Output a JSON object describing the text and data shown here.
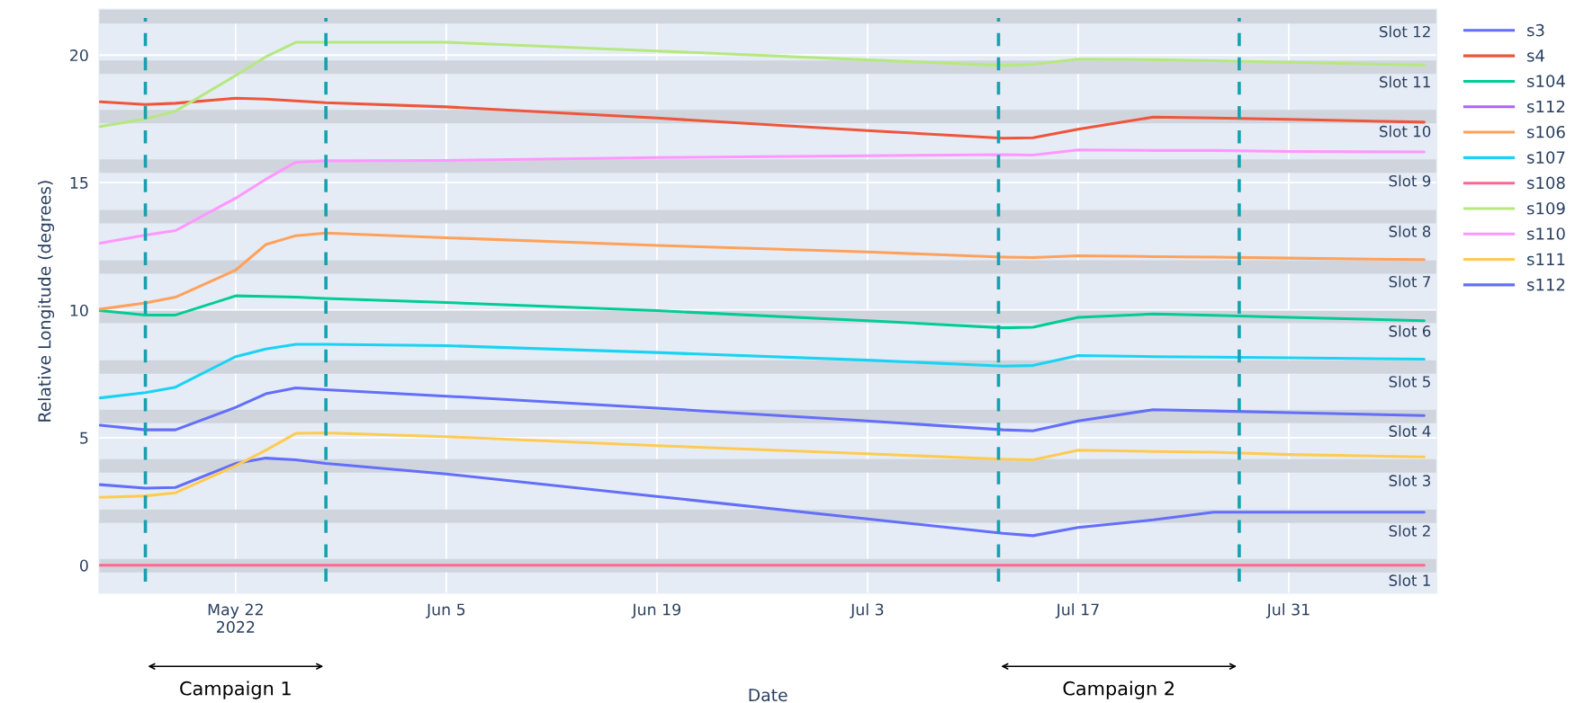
{
  "chart_data": {
    "type": "line",
    "xlabel": "Date",
    "ylabel": "Relative Longitude (degrees)",
    "x": [
      "2022-05-13",
      "2022-05-16",
      "2022-05-18",
      "2022-05-22",
      "2022-05-24",
      "2022-05-26",
      "2022-05-28",
      "2022-06-05",
      "2022-06-19",
      "2022-07-03",
      "2022-07-12",
      "2022-07-14",
      "2022-07-17",
      "2022-07-22",
      "2022-07-26",
      "2022-07-31",
      "2022-08-09"
    ],
    "series": [
      {
        "name": "s3",
        "color": "#636efa",
        "values": [
          3.16,
          3.02,
          3.05,
          3.99,
          4.2,
          4.13,
          3.99,
          3.58,
          2.7,
          1.82,
          1.25,
          1.16,
          1.48,
          1.78,
          2.08,
          2.08,
          2.08
        ]
      },
      {
        "name": "s4",
        "color": "#ef553b",
        "values": [
          18.17,
          18.06,
          18.11,
          18.31,
          18.27,
          18.2,
          18.13,
          17.97,
          17.53,
          17.04,
          16.74,
          16.76,
          17.09,
          17.57,
          17.53,
          17.48,
          17.37
        ]
      },
      {
        "name": "s104",
        "color": "#00cc96",
        "values": [
          9.98,
          9.81,
          9.81,
          10.56,
          10.54,
          10.51,
          10.46,
          10.3,
          9.98,
          9.59,
          9.31,
          9.33,
          9.72,
          9.85,
          9.8,
          9.72,
          9.59
        ]
      },
      {
        "name": "s112",
        "color": "#ab63fa",
        "values": [
          null,
          null,
          null,
          null,
          null,
          null,
          null,
          null,
          null,
          null,
          null,
          null,
          null,
          null,
          null,
          null,
          null
        ]
      },
      {
        "name": "s106",
        "color": "#ffa15a",
        "values": [
          10.04,
          10.28,
          10.51,
          11.57,
          12.57,
          12.92,
          13.02,
          12.84,
          12.54,
          12.28,
          12.08,
          12.06,
          12.13,
          12.1,
          12.08,
          12.04,
          11.98
        ]
      },
      {
        "name": "s107",
        "color": "#19d3f3",
        "values": [
          6.56,
          6.77,
          6.98,
          8.18,
          8.48,
          8.66,
          8.66,
          8.61,
          8.34,
          8.04,
          7.81,
          7.83,
          8.22,
          8.18,
          8.16,
          8.13,
          8.08
        ]
      },
      {
        "name": "s108",
        "color": "#ff6692",
        "values": [
          0,
          0,
          0,
          0,
          0,
          0,
          0,
          0,
          0,
          0,
          0,
          0,
          0,
          0,
          0,
          0,
          0
        ]
      },
      {
        "name": "s109",
        "color": "#b6e880",
        "values": [
          17.2,
          17.5,
          17.8,
          19.2,
          19.93,
          20.5,
          20.5,
          20.5,
          20.16,
          19.81,
          19.59,
          19.64,
          19.84,
          19.82,
          19.78,
          19.72,
          19.6
        ]
      },
      {
        "name": "s110",
        "color": "#ff97ff",
        "values": [
          12.63,
          12.94,
          13.12,
          14.39,
          15.13,
          15.8,
          15.85,
          15.87,
          15.98,
          16.05,
          16.1,
          16.08,
          16.28,
          16.26,
          16.26,
          16.22,
          16.2
        ]
      },
      {
        "name": "s111",
        "color": "#fecb52",
        "values": [
          2.66,
          2.72,
          2.84,
          3.9,
          4.51,
          5.17,
          5.19,
          5.04,
          4.69,
          4.37,
          4.16,
          4.13,
          4.51,
          4.46,
          4.43,
          4.34,
          4.25
        ]
      },
      {
        "name": "s112",
        "color": "#636efa",
        "values": [
          5.49,
          5.31,
          5.31,
          6.19,
          6.72,
          6.95,
          6.88,
          6.63,
          6.16,
          5.66,
          5.31,
          5.27,
          5.66,
          6.1,
          6.05,
          5.98,
          5.87
        ]
      }
    ],
    "xlim": [
      "2022-05-12T22:00",
      "2022-08-09T20:00"
    ],
    "xticks": [
      {
        "value": "2022-05-22",
        "label": "May 22\n2022"
      },
      {
        "value": "2022-06-05",
        "label": "Jun 5"
      },
      {
        "value": "2022-06-19",
        "label": "Jun 19"
      },
      {
        "value": "2022-07-03",
        "label": "Jul 3"
      },
      {
        "value": "2022-07-17",
        "label": "Jul 17"
      },
      {
        "value": "2022-07-31",
        "label": "Jul 31"
      }
    ],
    "ylim": [
      -1.1,
      21.8
    ],
    "yticks": [
      0,
      5,
      10,
      15,
      20
    ],
    "grid": true,
    "legend": "top right",
    "ref_lines": [
      {
        "axis": "x",
        "value": "2022-05-16",
        "color": "#17a0b0",
        "line_style": "dashed"
      },
      {
        "axis": "x",
        "value": "2022-05-28",
        "color": "#17a0b0",
        "line_style": "dashed"
      },
      {
        "axis": "x",
        "value": "2022-07-11T17:00",
        "color": "#17a0b0",
        "line_style": "dashed"
      },
      {
        "axis": "x",
        "value": "2022-07-27T17:00",
        "color": "#17a0b0",
        "line_style": "dashed"
      }
    ],
    "bands": [
      {
        "axis": "y",
        "from": -0.28,
        "to": 0.25,
        "label": "Slot 1",
        "color": "#d0d5dd"
      },
      {
        "axis": "y",
        "from": 1.66,
        "to": 2.19,
        "label": "Slot 2",
        "color": "#d0d5dd"
      },
      {
        "axis": "y",
        "from": 3.63,
        "to": 4.16,
        "label": "Slot 3",
        "color": "#d0d5dd"
      },
      {
        "axis": "y",
        "from": 5.57,
        "to": 6.1,
        "label": "Slot 4",
        "color": "#d0d5dd"
      },
      {
        "axis": "y",
        "from": 7.51,
        "to": 8.04,
        "label": "Slot 5",
        "color": "#d0d5dd"
      },
      {
        "axis": "y",
        "from": 9.49,
        "to": 9.98,
        "label": "Slot 6",
        "color": "#d0d5dd"
      },
      {
        "axis": "y",
        "from": 11.43,
        "to": 11.96,
        "label": "Slot 7",
        "color": "#d0d5dd"
      },
      {
        "axis": "y",
        "from": 13.4,
        "to": 13.93,
        "label": "Slot 8",
        "color": "#d0d5dd"
      },
      {
        "axis": "y",
        "from": 15.38,
        "to": 15.91,
        "label": "Slot 9",
        "color": "#d0d5dd"
      },
      {
        "axis": "y",
        "from": 17.32,
        "to": 17.85,
        "label": "Slot 10",
        "color": "#d0d5dd"
      },
      {
        "axis": "y",
        "from": 19.26,
        "to": 19.79,
        "label": "Slot 11",
        "color": "#d0d5dd"
      },
      {
        "axis": "y",
        "from": 21.23,
        "to": 21.8,
        "label": "Slot 12",
        "color": "#d0d5dd"
      }
    ],
    "annotations": [
      "Campaign 1",
      "Campaign 2"
    ]
  }
}
